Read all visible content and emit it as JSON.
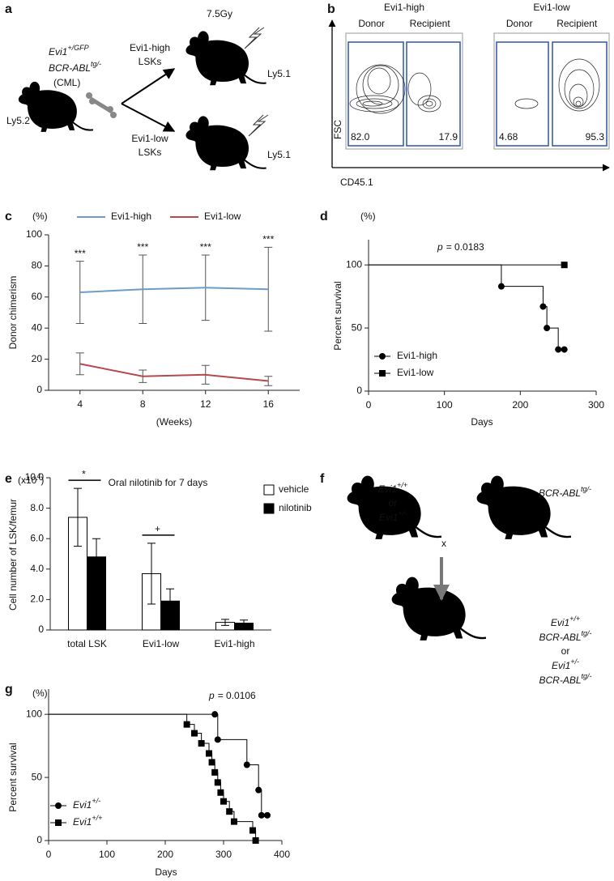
{
  "panel_labels": [
    "a",
    "b",
    "c",
    "d",
    "e",
    "f",
    "g"
  ],
  "panel_a": {
    "donor_genotype_1": {
      "text": "Evi1",
      "sup": "+/GFP"
    },
    "donor_genotype_2": {
      "text": "BCR-ABL",
      "sup": "tg/-"
    },
    "donor_note": "(CML)",
    "donor_strain": "Ly5.2",
    "branch_high": [
      "Evi1-high",
      "LSKs"
    ],
    "branch_low": [
      "Evi1-low",
      "LSKs"
    ],
    "dose": "7.5Gy",
    "recipient_high": "Ly5.1",
    "recipient_low": "Ly5.1"
  },
  "panel_b": {
    "y_label": "FSC",
    "x_label": "CD45.1",
    "plots": [
      {
        "title": "Evi1-high",
        "gates": [
          "Donor",
          "Recipient"
        ],
        "percentages": [
          "82.0",
          "17.9"
        ]
      },
      {
        "title": "Evi1-low",
        "gates": [
          "Donor",
          "Recipient"
        ],
        "percentages": [
          "4.68",
          "95.3"
        ]
      }
    ]
  },
  "panel_f": {
    "parent_1": [
      {
        "text": "Evi1",
        "sup": "+/+"
      },
      "or",
      {
        "text": "Evi1",
        "sup": "+/-"
      }
    ],
    "parent_2": {
      "text": "BCR-ABL",
      "sup": "tg/-"
    },
    "cross": "x",
    "offspring": [
      {
        "text": "Evi1",
        "sup": "+/+"
      },
      {
        "text": "BCR-ABL",
        "sup": "tg/-"
      },
      "or",
      {
        "text": "Evi1",
        "sup": "+/-"
      },
      {
        "text": "BCR-ABL",
        "sup": "tg/-"
      }
    ]
  },
  "chart_data": [
    {
      "type": "line",
      "y_unit": "(%)",
      "ylabel": "Donor chimerism",
      "xlabel": "(Weeks)",
      "categories": [
        "4",
        "8",
        "12",
        "16"
      ],
      "ylim": [
        0,
        100
      ],
      "yticks": [
        0,
        20,
        40,
        60,
        80,
        100
      ],
      "series": [
        {
          "name": "Evi1-high",
          "color": "#6f9bc7",
          "values": [
            63,
            65,
            66,
            65
          ],
          "errors": [
            20,
            22,
            21,
            27
          ]
        },
        {
          "name": "Evi1-low",
          "color": "#b5494d",
          "values": [
            17,
            9,
            10,
            6
          ],
          "errors": [
            7,
            4,
            6,
            3
          ]
        }
      ],
      "annotations": [
        "***",
        "***",
        "***",
        "***"
      ]
    },
    {
      "type": "survival",
      "y_unit": "(%)",
      "ylabel": "Percent survival",
      "xlabel": "Days",
      "xlim": [
        0,
        300
      ],
      "xticks": [
        0,
        100,
        200,
        300
      ],
      "ylim": [
        0,
        120
      ],
      "yticks": [
        0,
        50,
        100
      ],
      "annotation": {
        "italic": "p",
        "text": "= 0.0183"
      },
      "series": [
        {
          "name": "Evi1-high",
          "marker": "circle",
          "color": "#000000",
          "x": [
            0,
            175,
            230,
            235,
            250,
            258
          ],
          "values": [
            100,
            83,
            67,
            50,
            33,
            33
          ]
        },
        {
          "name": "Evi1-low",
          "marker": "square",
          "color": "#000000",
          "x": [
            0,
            258
          ],
          "values": [
            100,
            100
          ]
        }
      ]
    },
    {
      "type": "bar",
      "y_unit": {
        "text": "(x10",
        "sup": "4",
        "end": ")"
      },
      "title": "Oral nilotinib for 7 days",
      "ylabel": "Cell number of LSK/femur",
      "categories": [
        "total LSK",
        "Evi1-low",
        "Evi1-high"
      ],
      "ylim": [
        0,
        10
      ],
      "yticks": [
        0,
        {
          "value": 2,
          "label": "2.0"
        },
        {
          "value": 4,
          "label": "4.0"
        },
        {
          "value": 6,
          "label": "6.0"
        },
        {
          "value": 8,
          "label": "8.0"
        },
        {
          "value": 10,
          "label": "10.0"
        }
      ],
      "series": [
        {
          "name": "vehicle",
          "color": "#ffffff",
          "values": [
            7.4,
            3.7,
            0.5
          ],
          "errors": [
            1.9,
            2.0,
            0.2
          ]
        },
        {
          "name": "nilotinib",
          "color": "#000000",
          "values": [
            4.8,
            1.9,
            0.45
          ],
          "errors": [
            1.2,
            0.8,
            0.2
          ]
        }
      ],
      "significance": [
        "*",
        "+",
        null
      ]
    },
    {
      "type": "survival",
      "y_unit": "(%)",
      "ylabel": "Percent survival",
      "xlabel": "Days",
      "xlim": [
        0,
        400
      ],
      "xticks": [
        0,
        100,
        200,
        300,
        400
      ],
      "ylim": [
        0,
        120
      ],
      "yticks": [
        0,
        50,
        100
      ],
      "annotation": {
        "italic": "p",
        "text": "= 0.0106"
      },
      "series": [
        {
          "name": {
            "text": "Evi1",
            "sup": "+/-"
          },
          "marker": "circle",
          "color": "#000000",
          "x": [
            0,
            285,
            290,
            340,
            360,
            365,
            375
          ],
          "values": [
            100,
            100,
            80,
            60,
            40,
            20,
            20
          ]
        },
        {
          "name": {
            "text": "Evi1",
            "sup": "+/+"
          },
          "marker": "square",
          "color": "#000000",
          "x": [
            0,
            237,
            250,
            262,
            275,
            280,
            285,
            290,
            295,
            300,
            310,
            318,
            350,
            355
          ],
          "values": [
            100,
            92,
            85,
            77,
            69,
            62,
            54,
            46,
            38,
            31,
            23,
            15,
            8,
            0
          ]
        }
      ]
    }
  ]
}
